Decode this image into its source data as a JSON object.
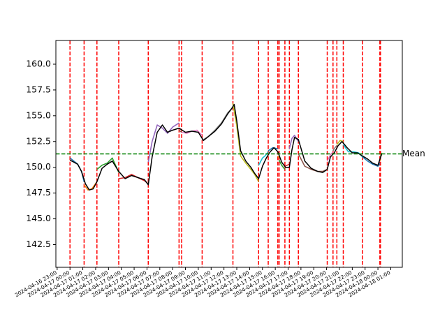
{
  "chart_data": {
    "type": "line",
    "title": "",
    "xlabel": "",
    "ylabel": "",
    "ylim": [
      140.3,
      162.3
    ],
    "y_ticks": [
      142.5,
      145.0,
      147.5,
      150.0,
      152.5,
      155.0,
      157.5,
      160.0
    ],
    "y_tick_labels": [
      "142.5",
      "145.0",
      "147.5",
      "150.0",
      "152.5",
      "155.0",
      "157.5",
      "160.0"
    ],
    "x_range_hours": [
      -1.1,
      25.9
    ],
    "x_ticks_hours": [
      -1,
      0,
      1,
      2,
      3,
      4,
      5,
      6,
      7,
      8,
      9,
      10,
      11,
      12,
      13,
      14,
      15,
      16,
      17,
      18,
      19,
      20,
      21,
      22,
      23,
      24,
      25
    ],
    "x_tick_labels": [
      "2024-04-16 23:00",
      "2024-04-17 00:00",
      "2024-04-17 01:00",
      "2024-04-17 02:00",
      "2024-04-17 03:00",
      "2024-04-17 04:00",
      "2024-04-17 05:00",
      "2024-04-17 06:00",
      "2024-04-17 07:00",
      "2024-04-17 08:00",
      "2024-04-17 09:00",
      "2024-04-17 10:00",
      "2024-04-17 11:00",
      "2024-04-17 12:00",
      "2024-04-17 13:00",
      "2024-04-17 14:00",
      "2024-04-17 15:00",
      "2024-04-17 16:00",
      "2024-04-17 17:00",
      "2024-04-17 18:00",
      "2024-04-17 19:00",
      "2024-04-17 20:00",
      "2024-04-17 21:00",
      "2024-04-17 22:00",
      "2024-04-17 23:00",
      "2024-04-18 00:00",
      "2024-04-18 01:00"
    ],
    "mean": {
      "label": "Mean",
      "value": 151.3,
      "color": "#008000"
    },
    "changepoints_hours": [
      0.0,
      1.1,
      2.1,
      3.8,
      6.1,
      8.5,
      8.7,
      10.3,
      12.7,
      14.7,
      15.45,
      16.2,
      16.3,
      16.75,
      17.1,
      17.8,
      20.05,
      20.5,
      20.8,
      21.3,
      22.8,
      24.15,
      24.2
    ],
    "changepoint_color": "#ff0000",
    "mean_line_color": "#000000",
    "series": [
      {
        "color": "#1f77b4",
        "x": [
          0.0,
          0.3,
          0.6,
          0.9,
          1.1
        ],
        "y": [
          150.9,
          150.6,
          150.3,
          149.6,
          148.6
        ]
      },
      {
        "color": "#ff7f0e",
        "x": [
          1.1,
          1.4,
          1.7,
          2.1
        ],
        "y": [
          148.3,
          147.8,
          147.9,
          148.6
        ]
      },
      {
        "color": "#2ca02c",
        "x": [
          2.1,
          2.5,
          2.9,
          3.3,
          3.8
        ],
        "y": [
          149.8,
          150.2,
          150.4,
          150.9,
          149.5
        ]
      },
      {
        "color": "#d62728",
        "x": [
          3.8,
          4.3,
          4.8,
          5.3,
          5.8,
          6.1
        ],
        "y": [
          148.9,
          149.0,
          149.3,
          149.0,
          148.7,
          148.4
        ]
      },
      {
        "color": "#9467bd",
        "x": [
          6.1,
          6.4,
          6.8,
          7.2,
          7.6,
          8.0,
          8.5
        ],
        "y": [
          150.5,
          152.5,
          154.1,
          153.8,
          153.3,
          153.9,
          154.3
        ]
      },
      {
        "color": "#8c564b",
        "x": [
          8.5,
          8.7
        ],
        "y": [
          153.6,
          153.4
        ]
      },
      {
        "color": "#e377c2",
        "x": [
          8.7,
          9.1,
          9.5,
          9.9,
          10.3
        ],
        "y": [
          153.4,
          153.3,
          153.5,
          153.6,
          153.1
        ]
      },
      {
        "color": "#7f7f7f",
        "x": [
          10.3,
          10.8,
          11.3,
          11.8,
          12.3,
          12.7
        ],
        "y": [
          152.6,
          153.0,
          153.6,
          154.3,
          155.3,
          155.8
        ]
      },
      {
        "color": "#bcbd22",
        "x": [
          12.7,
          13.0,
          13.3,
          13.7,
          14.1,
          14.4,
          14.7
        ],
        "y": [
          156.2,
          154.0,
          151.1,
          150.4,
          149.8,
          149.3,
          148.6
        ]
      },
      {
        "color": "#17becf",
        "x": [
          14.7,
          15.0,
          15.2,
          15.45
        ],
        "y": [
          150.2,
          150.9,
          151.1,
          151.5
        ]
      },
      {
        "color": "#1f77b4",
        "x": [
          15.45,
          15.8,
          16.2
        ],
        "y": [
          151.6,
          151.9,
          151.8
        ]
      },
      {
        "color": "#ff7f0e",
        "x": [
          16.2,
          16.3
        ],
        "y": [
          151.1,
          150.9
        ]
      },
      {
        "color": "#2ca02c",
        "x": [
          16.3,
          16.5,
          16.75
        ],
        "y": [
          150.7,
          150.2,
          149.8
        ]
      },
      {
        "color": "#d62728",
        "x": [
          16.75,
          17.1
        ],
        "y": [
          150.1,
          150.3
        ]
      },
      {
        "color": "#9467bd",
        "x": [
          17.1,
          17.3,
          17.5,
          17.8
        ],
        "y": [
          151.8,
          152.8,
          153.1,
          152.5
        ]
      },
      {
        "color": "#8c564b",
        "x": [
          17.8,
          18.3,
          18.8,
          19.3,
          19.7,
          20.05
        ],
        "y": [
          151.3,
          150.1,
          149.8,
          149.6,
          149.6,
          149.8
        ]
      },
      {
        "color": "#e377c2",
        "x": [
          20.05,
          20.3,
          20.5
        ],
        "y": [
          150.6,
          151.2,
          151.5
        ]
      },
      {
        "color": "#7f7f7f",
        "x": [
          20.5,
          20.65,
          20.8
        ],
        "y": [
          151.6,
          151.9,
          152.1
        ]
      },
      {
        "color": "#bcbd22",
        "x": [
          20.8,
          21.05,
          21.3
        ],
        "y": [
          152.2,
          152.6,
          152.5
        ]
      },
      {
        "color": "#17becf",
        "x": [
          21.3,
          21.7,
          22.1,
          22.5,
          22.8
        ],
        "y": [
          152.2,
          151.5,
          151.5,
          151.4,
          151.0
        ]
      },
      {
        "color": "#1f77b4",
        "x": [
          22.8,
          23.2,
          23.6,
          24.0,
          24.15
        ],
        "y": [
          151.0,
          150.6,
          150.3,
          150.1,
          150.4
        ]
      },
      {
        "color": "#ff7f0e",
        "x": [
          24.15,
          24.2
        ],
        "y": [
          150.6,
          150.8
        ]
      },
      {
        "color": "#2ca02c",
        "x": [
          24.2,
          24.3
        ],
        "y": [
          151.1,
          151.4
        ]
      }
    ],
    "rolling_mean": {
      "x": [
        0.0,
        0.3,
        0.6,
        0.9,
        1.2,
        1.5,
        1.8,
        2.1,
        2.5,
        2.9,
        3.3,
        3.8,
        4.3,
        4.8,
        5.3,
        5.8,
        6.1,
        6.4,
        6.8,
        7.2,
        7.6,
        8.0,
        8.5,
        9.0,
        9.5,
        10.0,
        10.4,
        10.8,
        11.3,
        11.8,
        12.3,
        12.6,
        12.8,
        13.0,
        13.3,
        13.7,
        14.1,
        14.4,
        14.7,
        15.0,
        15.3,
        15.6,
        15.9,
        16.2,
        16.5,
        16.8,
        17.1,
        17.3,
        17.5,
        17.8,
        18.3,
        18.8,
        19.3,
        19.7,
        20.05,
        20.3,
        20.6,
        20.9,
        21.2,
        21.6,
        22.0,
        22.4,
        22.8,
        23.2,
        23.6,
        24.0,
        24.3
      ],
      "y": [
        150.7,
        150.5,
        150.3,
        149.6,
        148.4,
        147.8,
        147.9,
        148.6,
        149.9,
        150.3,
        150.6,
        149.6,
        148.9,
        149.2,
        149.0,
        148.8,
        148.3,
        151.0,
        153.4,
        154.1,
        153.4,
        153.6,
        153.8,
        153.4,
        153.5,
        153.4,
        152.6,
        153.0,
        153.5,
        154.2,
        155.2,
        155.7,
        156.1,
        154.5,
        151.6,
        150.6,
        150.0,
        149.4,
        148.9,
        150.1,
        150.9,
        151.5,
        151.9,
        151.5,
        150.5,
        150.0,
        150.0,
        151.7,
        152.9,
        152.7,
        150.6,
        149.9,
        149.6,
        149.5,
        149.8,
        151.0,
        151.4,
        152.1,
        152.5,
        151.9,
        151.4,
        151.4,
        151.1,
        150.8,
        150.4,
        150.2,
        151.3
      ]
    }
  }
}
